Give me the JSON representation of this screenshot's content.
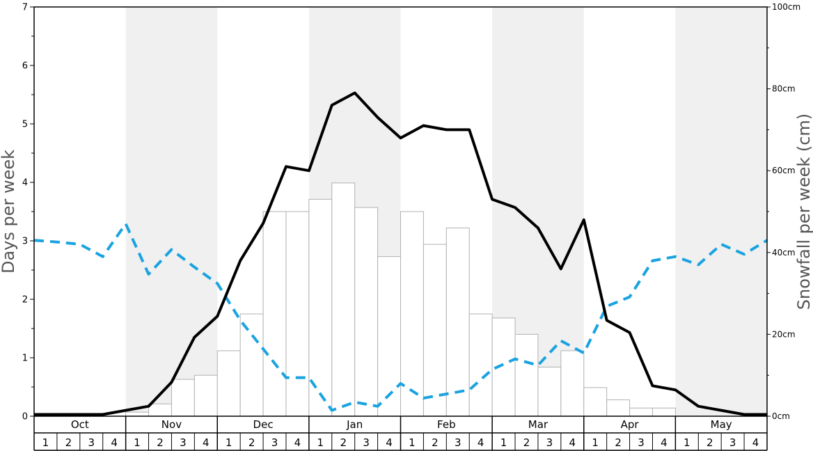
{
  "chart_data": {
    "type": "bar+line",
    "ylabel_left": "Days per week",
    "ylabel_right": "Snowfall per week (cm)",
    "ylim_left": [
      0,
      7
    ],
    "ylim_right": [
      0,
      100
    ],
    "left_ticks": [
      "0",
      "1",
      "2",
      "3",
      "4",
      "5",
      "6",
      "7"
    ],
    "right_ticks": [
      "0cm",
      "20cm",
      "40cm",
      "60cm",
      "80cm",
      "100cm"
    ],
    "months": [
      "Oct",
      "Nov",
      "Dec",
      "Jan",
      "Feb",
      "Mar",
      "Apr",
      "May"
    ],
    "week_labels": [
      "1",
      "2",
      "3",
      "4"
    ],
    "shaded_months": [
      "Nov",
      "Jan",
      "Mar",
      "May"
    ],
    "colors": {
      "bars_fill": "#ffffff",
      "bars_stroke": "#b0b0b0",
      "line_solid": "#000000",
      "line_dashed": "#1aa3e0",
      "shade": "#f0f0f0"
    },
    "series": [
      {
        "kind": "bars",
        "axis": "right",
        "values": [
          0,
          0,
          0,
          0,
          1,
          3,
          9,
          10,
          16,
          25,
          50,
          50,
          53,
          57,
          51,
          39,
          50,
          42,
          46,
          25,
          24,
          20,
          12,
          16,
          7,
          4,
          2,
          2,
          0,
          0,
          0,
          0
        ]
      },
      {
        "kind": "line-solid",
        "axis": "left",
        "values": [
          0.03,
          0.03,
          0.03,
          0.03,
          0.1,
          0.17,
          0.58,
          1.35,
          1.71,
          2.66,
          3.3,
          4.27,
          4.2,
          5.32,
          5.53,
          5.11,
          4.76,
          4.97,
          4.9,
          4.9,
          3.71,
          3.57,
          3.22,
          2.52,
          3.36,
          1.64,
          1.43,
          0.52,
          0.45,
          0.17,
          0.1,
          0.03,
          0.03
        ]
      },
      {
        "kind": "line-dashed",
        "axis": "left",
        "values": [
          3.01,
          2.98,
          2.94,
          2.73,
          3.29,
          2.43,
          2.85,
          2.55,
          2.27,
          1.64,
          1.15,
          0.66,
          0.66,
          0.1,
          0.24,
          0.17,
          0.56,
          0.31,
          0.38,
          0.45,
          0.8,
          0.98,
          0.87,
          1.29,
          1.08,
          1.88,
          2.04,
          2.66,
          2.73,
          2.59,
          2.94,
          2.77,
          3.01
        ]
      }
    ]
  }
}
